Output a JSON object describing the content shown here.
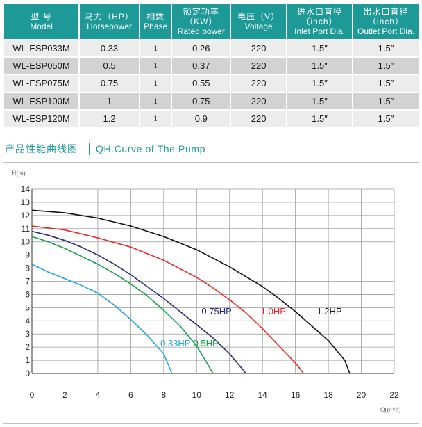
{
  "table": {
    "headers": [
      {
        "zh": "型 号",
        "en": "Model"
      },
      {
        "zh": "马力（HP）",
        "en": "Horsepower"
      },
      {
        "zh": "相数",
        "en": "Phase"
      },
      {
        "zh": "额定功率",
        "zh2": "（KW）",
        "en": "Rated power"
      },
      {
        "zh": "电压（V）",
        "en": "Voltage"
      },
      {
        "zh": "进水口直径",
        "zh2": "（inch）",
        "en": "Inlet Port Dia."
      },
      {
        "zh": "出水口直径",
        "zh2": "（inch）",
        "en": "Outlet Port Dia."
      }
    ],
    "rows": [
      [
        "WL-ESP033M",
        "0.33",
        "1",
        "0.26",
        "220",
        "1.5″",
        "1.5″"
      ],
      [
        "WL-ESP050M",
        "0.5",
        "1",
        "0.37",
        "220",
        "1.5″",
        "1.5″"
      ],
      [
        "WL-ESP075M",
        "0.75",
        "1",
        "0.55",
        "220",
        "1.5″",
        "1.5″"
      ],
      [
        "WL-ESP100M",
        "1",
        "1",
        "0.75",
        "220",
        "1.5″",
        "1.5″"
      ],
      [
        "WL-ESP120M",
        "1.2",
        "1",
        "0.9",
        "220",
        "1.5″",
        "1.5″"
      ]
    ],
    "header_color": "#1d9a97"
  },
  "section": {
    "title_zh": "产品性能曲线图",
    "title_en": "QH.Curve of The Pump"
  },
  "chart_data": {
    "type": "line",
    "xlabel": "Q(m³/h)",
    "ylabel": "H(m)",
    "xlim": [
      0,
      22
    ],
    "ylim": [
      0,
      14
    ],
    "x_ticks": [
      0,
      2,
      4,
      6,
      8,
      10,
      12,
      14,
      16,
      18,
      20,
      22
    ],
    "y_ticks": [
      0,
      1,
      2,
      3,
      4,
      5,
      6,
      7,
      8,
      9,
      10,
      11,
      12,
      13,
      14
    ],
    "grid": true,
    "series": [
      {
        "name": "0.33HP",
        "color": "#1aa7d8",
        "x": [
          0,
          1,
          2,
          3,
          4,
          5,
          6,
          7,
          8,
          8.5
        ],
        "y": [
          8.3,
          7.7,
          7.2,
          6.7,
          6.1,
          5.2,
          4.1,
          2.9,
          1.5,
          0.0
        ]
      },
      {
        "name": "0.5HP",
        "color": "#14a04a",
        "x": [
          0,
          1,
          2,
          3,
          4,
          5,
          6,
          7,
          8,
          9,
          10,
          11
        ],
        "y": [
          10.4,
          10.0,
          9.5,
          8.9,
          8.3,
          7.6,
          6.8,
          5.9,
          4.8,
          3.6,
          2.1,
          0.0
        ]
      },
      {
        "name": "0.75HP",
        "color": "#2a2a7a",
        "x": [
          0,
          1,
          2,
          3,
          4,
          5,
          6,
          7,
          8,
          9,
          10,
          11,
          12,
          13
        ],
        "y": [
          10.8,
          10.5,
          10.1,
          9.6,
          9.0,
          8.3,
          7.5,
          6.6,
          5.7,
          4.7,
          3.7,
          2.7,
          1.5,
          0.0
        ]
      },
      {
        "name": "1.0HP",
        "color": "#e8262b",
        "x": [
          0,
          2,
          4,
          6,
          8,
          10,
          11,
          12,
          13,
          14,
          15,
          16,
          16.5
        ],
        "y": [
          11.2,
          10.9,
          10.3,
          9.6,
          8.6,
          7.3,
          6.5,
          5.6,
          4.6,
          3.4,
          2.1,
          0.8,
          0.0
        ]
      },
      {
        "name": "1.2HP",
        "color": "#111111",
        "x": [
          0,
          2,
          4,
          6,
          8,
          10,
          12,
          14,
          15,
          16,
          17,
          18,
          19,
          19.3
        ],
        "y": [
          12.4,
          12.2,
          11.8,
          11.2,
          10.4,
          9.4,
          8.1,
          6.6,
          5.7,
          4.7,
          3.6,
          2.5,
          1.0,
          0.0
        ]
      }
    ],
    "annotations": [
      {
        "text": "0.33HP",
        "x": 7.8,
        "y": 2.05,
        "color": "#1aa7d8"
      },
      {
        "text": "0.5HP",
        "x": 9.8,
        "y": 2.05,
        "color": "#14a04a"
      },
      {
        "text": "0.75HP",
        "x": 10.3,
        "y": 4.5,
        "color": "#2a2a7a"
      },
      {
        "text": "1.0HP",
        "x": 13.9,
        "y": 4.5,
        "color": "#e8262b"
      },
      {
        "text": "1.2HP",
        "x": 17.3,
        "y": 4.5,
        "color": "#111111"
      }
    ]
  }
}
